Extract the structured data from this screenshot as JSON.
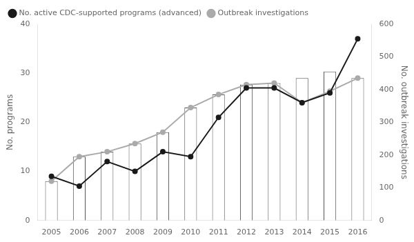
{
  "chart_data": {
    "type": "bar",
    "categories": [
      "2005",
      "2006",
      "2007",
      "2008",
      "2009",
      "2010",
      "2011",
      "2012",
      "2013",
      "2014",
      "2015",
      "2016"
    ],
    "series": [
      {
        "type": "bar",
        "color": "#555555",
        "axis": "y2",
        "values": [
          120,
          195,
          210,
          235,
          270,
          345,
          385,
          415,
          420,
          435,
          455,
          435
        ]
      },
      {
        "type": "line",
        "name": "Outbreak investigations",
        "color": "#aaaaaa",
        "marker": "circle",
        "axis": "y2",
        "values": [
          120,
          195,
          210,
          235,
          270,
          345,
          385,
          415,
          420,
          360,
          395,
          435
        ]
      },
      {
        "type": "line",
        "name": "No. active CDC-supported programs (advanced)",
        "color": "#1a1a1a",
        "marker": "circle",
        "values": [
          9,
          7,
          12,
          10,
          14,
          13,
          21,
          27,
          27,
          24,
          26,
          37
        ]
      }
    ],
    "ylabel": "No. programs",
    "y2label": "No. outbreak investigations",
    "ylim": [
      0,
      40
    ],
    "yticks": [
      0,
      10,
      20,
      30,
      40
    ],
    "y2lim": [
      0,
      600
    ],
    "y2ticks": [
      0,
      100,
      200,
      300,
      400,
      500,
      600
    ],
    "grid": false,
    "legend": "upper left"
  }
}
